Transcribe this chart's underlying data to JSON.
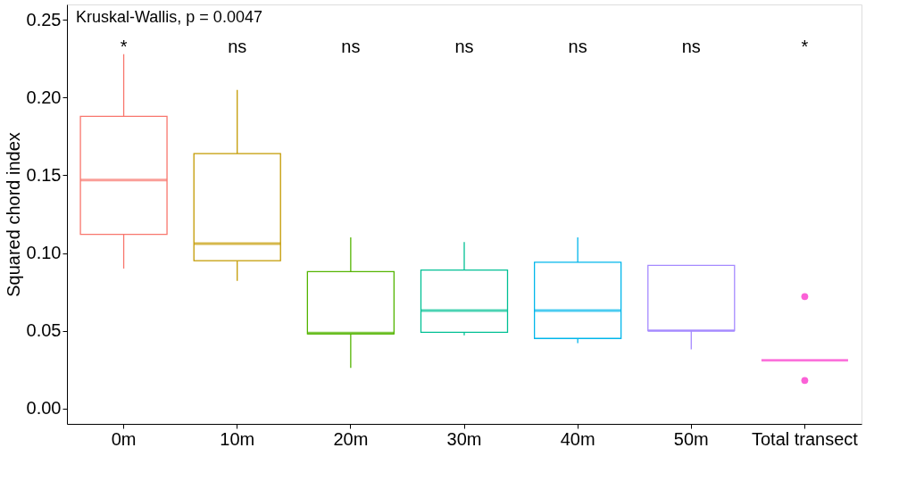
{
  "chart_data": {
    "type": "box",
    "ylabel": "Squared chord index",
    "categories": [
      "0m",
      "10m",
      "20m",
      "30m",
      "40m",
      "50m",
      "Total transect"
    ],
    "colors": [
      "#f8766d",
      "#c49a00",
      "#53b400",
      "#00c094",
      "#00b6eb",
      "#a58aff",
      "#fb61d7"
    ],
    "boxes": [
      {
        "low": 0.09,
        "q1": 0.112,
        "median": 0.147,
        "q3": 0.188,
        "high": 0.228
      },
      {
        "low": 0.082,
        "q1": 0.095,
        "median": 0.106,
        "q3": 0.164,
        "high": 0.205
      },
      {
        "low": 0.026,
        "q1": 0.048,
        "median": 0.0485,
        "q3": 0.088,
        "high": 0.11
      },
      {
        "low": 0.047,
        "q1": 0.049,
        "median": 0.063,
        "q3": 0.089,
        "high": 0.107
      },
      {
        "low": 0.042,
        "q1": 0.045,
        "median": 0.063,
        "q3": 0.094,
        "high": 0.11
      },
      {
        "low": 0.038,
        "q1": 0.05,
        "median": 0.05,
        "q3": 0.092,
        "high": 0.092
      },
      {
        "low": 0.031,
        "q1": 0.031,
        "median": 0.031,
        "q3": 0.031,
        "high": 0.031,
        "outliers": [
          0.072,
          0.018
        ]
      }
    ],
    "ylim": [
      -0.01,
      0.26
    ],
    "yticks": [
      {
        "value": 0,
        "label": "0.00"
      },
      {
        "value": 0.05,
        "label": "0.05"
      },
      {
        "value": 0.1,
        "label": "0.10"
      },
      {
        "value": 0.15,
        "label": "0.15"
      },
      {
        "value": 0.2,
        "label": "0.20"
      },
      {
        "value": 0.25,
        "label": "0.25"
      }
    ],
    "grid": false,
    "annotations": [
      "Kruskal-Wallis, p = 0.0047",
      "*",
      "ns",
      "ns",
      "ns",
      "ns",
      "ns",
      "*"
    ]
  }
}
